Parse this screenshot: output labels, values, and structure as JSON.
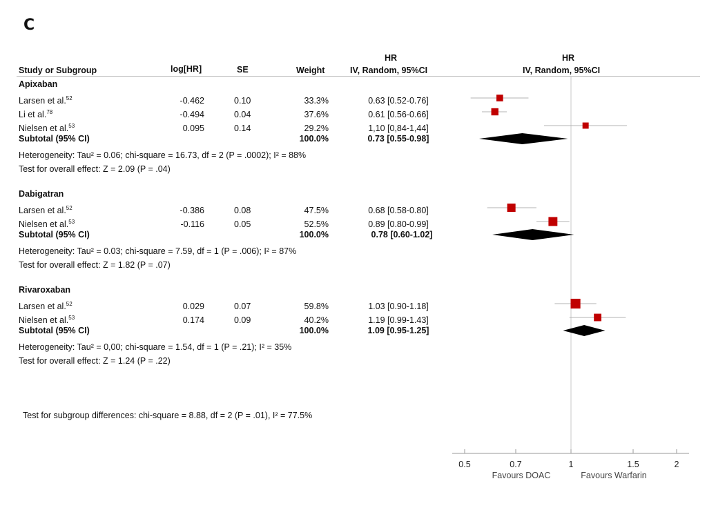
{
  "panel_label": "C",
  "headers": {
    "study": "Study or Subgroup",
    "loghr": "log[HR]",
    "se": "SE",
    "weight": "Weight",
    "hr_top_left": "HR",
    "hr_method_left": "IV, Random, 95%CI",
    "hr_top_right": "HR",
    "hr_method_right": "IV, Random, 95%CI"
  },
  "groups": [
    {
      "name": "Apixaban",
      "rows": [
        {
          "study": "Larsen et al.",
          "ref": "52",
          "loghr": "-0.462",
          "se": "0.10",
          "weight": "33.3%",
          "ci_text": "0.63 [0.52-0.76]"
        },
        {
          "study": "Li et al.",
          "ref": "78",
          "loghr": "-0.494",
          "se": "0.04",
          "weight": "37.6%",
          "ci_text": "0.61 [0.56-0.66]"
        },
        {
          "study": "Nielsen et al.",
          "ref": "53",
          "loghr": "0.095",
          "se": "0.14",
          "weight": "29.2%",
          "ci_text": "1,10 [0,84-1,44]"
        }
      ],
      "subtotal_label": "Subtotal (95% CI)",
      "subtotal_weight": "100.0%",
      "subtotal_ci_text": "0.73 [0.55-0.98]",
      "heterogeneity": "Heterogeneity: Tau² = 0.06; chi-square = 16.73, df = 2 (P = .0002); I² = 88%",
      "overall_effect": "Test for overall effect: Z = 2.09 (P = .04)"
    },
    {
      "name": "Dabigatran",
      "rows": [
        {
          "study": "Larsen et al.",
          "ref": "52",
          "loghr": "-0.386",
          "se": "0.08",
          "weight": "47.5%",
          "ci_text": "0.68 [0.58-0.80]"
        },
        {
          "study": "Nielsen et al.",
          "ref": "53",
          "loghr": "-0.116",
          "se": "0.05",
          "weight": "52.5%",
          "ci_text": "0.89 [0.80-0.99]"
        }
      ],
      "subtotal_label": "Subtotal (95% CI)",
      "subtotal_weight": "100.0%",
      "subtotal_ci_text": "0.78 [0.60-1.02]",
      "heterogeneity": "Heterogeneity: Tau² = 0.03; chi-square = 7.59, df = 1 (P = .006); I² = 87%",
      "overall_effect": "Test for overall effect: Z = 1.82 (P = .07)"
    },
    {
      "name": "Rivaroxaban",
      "rows": [
        {
          "study": "Larsen et al.",
          "ref": "52",
          "loghr": "0.029",
          "se": "0.07",
          "weight": "59.8%",
          "ci_text": "1.03 [0.90-1.18]"
        },
        {
          "study": "Nielsen et al.",
          "ref": "53",
          "loghr": "0.174",
          "se": "0.09",
          "weight": "40.2%",
          "ci_text": "1.19 [0.99-1.43]"
        }
      ],
      "subtotal_label": "Subtotal (95% CI)",
      "subtotal_weight": "100.0%",
      "subtotal_ci_text": "1.09 [0.95-1.25]",
      "heterogeneity": "Heterogeneity: Tau² = 0,00; chi-square = 1.54, df = 1 (P = .21); I² = 35%",
      "overall_effect": "Test for overall effect: Z = 1.24 (P = .22)"
    }
  ],
  "subgroup_test": "Test for subgroup differences: chi-square = 8.88, df = 2 (P = .01), I² = 77.5%",
  "axis": {
    "ticks": [
      0.5,
      0.7,
      1,
      1.5,
      2
    ],
    "tick_labels": [
      "0.5",
      "0.7",
      "1",
      "1.5",
      "2"
    ],
    "left_label": "Favours DOAC",
    "right_label": "Favours Warfarin"
  },
  "colors": {
    "study_marker": "#c00000",
    "ci_line": "#b3b3b3",
    "diamond": "#000000",
    "axis": "#999999"
  },
  "chart_data": {
    "type": "forest",
    "scale": "log",
    "xlim": [
      0.5,
      2
    ],
    "reference_line": 1,
    "series": [
      {
        "name": "Apixaban",
        "points": [
          {
            "label": "Larsen et al.",
            "hr": 0.63,
            "lo": 0.52,
            "hi": 0.76,
            "weight": 33.3
          },
          {
            "label": "Li et al.",
            "hr": 0.61,
            "lo": 0.56,
            "hi": 0.66,
            "weight": 37.6
          },
          {
            "label": "Nielsen et al.",
            "hr": 1.1,
            "lo": 0.84,
            "hi": 1.44,
            "weight": 29.2
          }
        ],
        "subtotal": {
          "hr": 0.73,
          "lo": 0.55,
          "hi": 0.98
        }
      },
      {
        "name": "Dabigatran",
        "points": [
          {
            "label": "Larsen et al.",
            "hr": 0.68,
            "lo": 0.58,
            "hi": 0.8,
            "weight": 47.5
          },
          {
            "label": "Nielsen et al.",
            "hr": 0.89,
            "lo": 0.8,
            "hi": 0.99,
            "weight": 52.5
          }
        ],
        "subtotal": {
          "hr": 0.78,
          "lo": 0.6,
          "hi": 1.02
        }
      },
      {
        "name": "Rivaroxaban",
        "points": [
          {
            "label": "Larsen et al.",
            "hr": 1.03,
            "lo": 0.9,
            "hi": 1.18,
            "weight": 59.8
          },
          {
            "label": "Nielsen et al.",
            "hr": 1.19,
            "lo": 0.99,
            "hi": 1.43,
            "weight": 40.2
          }
        ],
        "subtotal": {
          "hr": 1.09,
          "lo": 0.95,
          "hi": 1.25
        }
      }
    ]
  }
}
